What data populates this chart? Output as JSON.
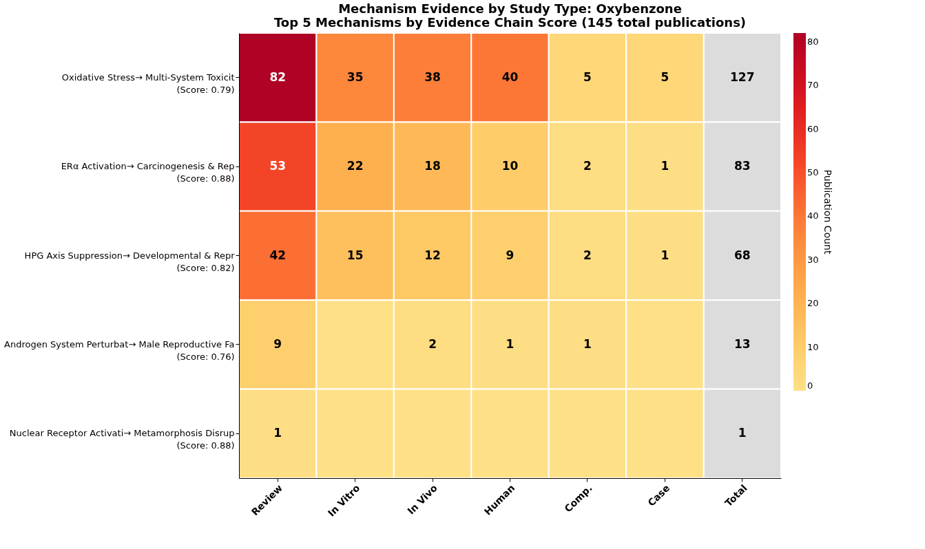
{
  "chart_data": {
    "type": "heatmap",
    "title": [
      "Mechanism Evidence by Study Type: Oxybenzone",
      "Top 5 Mechanisms by Evidence Chain Score (145 total publications)"
    ],
    "categories": [
      "Review",
      "In Vitro",
      "In Vivo",
      "Human",
      "Comp.",
      "Case",
      "Total"
    ],
    "y_categories": [
      "Oxidative Stress→ Multi-System Toxicit\n(Score: 0.79)",
      "ERα Activation→ Carcinogenesis & Rep\n(Score: 0.88)",
      "HPG Axis Suppression→ Developmental & Repr\n(Score: 0.82)",
      "Androgen System Perturbat→ Male Reproductive Fa\n(Score: 0.76)",
      "Nuclear Receptor Activati→ Metamorphosis Disrup\n(Score: 0.88)"
    ],
    "cells": [
      [
        82,
        35,
        38,
        40,
        5,
        5,
        null
      ],
      [
        53,
        22,
        18,
        10,
        2,
        1,
        null
      ],
      [
        42,
        15,
        12,
        9,
        2,
        1,
        null
      ],
      [
        9,
        0,
        2,
        1,
        1,
        0,
        null
      ],
      [
        1,
        0,
        0,
        0,
        0,
        0,
        null
      ]
    ],
    "cell_labels": [
      [
        "82",
        "35",
        "38",
        "40",
        "5",
        "5",
        "127"
      ],
      [
        "53",
        "22",
        "18",
        "10",
        "2",
        "1",
        "83"
      ],
      [
        "42",
        "15",
        "12",
        "9",
        "2",
        "1",
        "68"
      ],
      [
        "9",
        null,
        "2",
        "1",
        "1",
        null,
        "13"
      ],
      [
        "1",
        null,
        null,
        null,
        null,
        null,
        "1"
      ]
    ],
    "clabel": "Publication Count",
    "clim": [
      0,
      82
    ],
    "cticks": [
      0,
      10,
      20,
      30,
      40,
      50,
      60,
      70,
      80
    ]
  }
}
